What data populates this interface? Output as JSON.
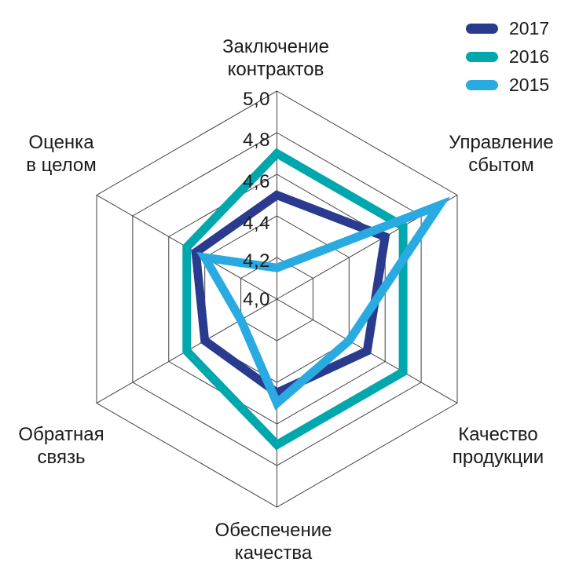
{
  "figure": {
    "description": "Radar chart of supplier evaluation scores by year"
  },
  "ticks": [
    "5,0",
    "4,8",
    "4,6",
    "4,4",
    "4,2",
    "4,0"
  ],
  "axes": [
    {
      "line1": "Заключение",
      "line2": "контрактов"
    },
    {
      "line1": "Управление",
      "line2": "сбытом"
    },
    {
      "line1": "Качество",
      "line2": "продукции"
    },
    {
      "line1": "Обеспечение",
      "line2": "качества"
    },
    {
      "line1": "Обратная",
      "line2": "связь"
    },
    {
      "line1": "Оценка",
      "line2": "в целом"
    }
  ],
  "legend": {
    "items": [
      {
        "label": "2017",
        "color": "#2a3b8f"
      },
      {
        "label": "2016",
        "color": "#00a7ad"
      },
      {
        "label": "2015",
        "color": "#29abe2"
      }
    ]
  },
  "chart_data": {
    "type": "radar",
    "categories": [
      "Заключение контрактов",
      "Управление сбытом",
      "Качество продукции",
      "Обеспечение качества",
      "Обратная связь",
      "Оценка в целом"
    ],
    "series": [
      {
        "name": "2017",
        "color": "#2a3b8f",
        "values": [
          4.5,
          4.6,
          4.5,
          4.45,
          4.4,
          4.45
        ]
      },
      {
        "name": "2016",
        "color": "#00a7ad",
        "values": [
          4.7,
          4.7,
          4.7,
          4.7,
          4.5,
          4.5
        ]
      },
      {
        "name": "2015",
        "color": "#29abe2",
        "values": [
          4.15,
          4.9,
          4.4,
          4.5,
          4.2,
          4.4
        ]
      }
    ],
    "rmin": 4.0,
    "rmax": 5.0,
    "tick_step": 0.2,
    "tick_labels": [
      "5,0",
      "4,8",
      "4,6",
      "4,4",
      "4,2",
      "4,0"
    ],
    "grid": true,
    "grid_color": "#404040",
    "line_width": 11,
    "legend_position": "top-right"
  }
}
